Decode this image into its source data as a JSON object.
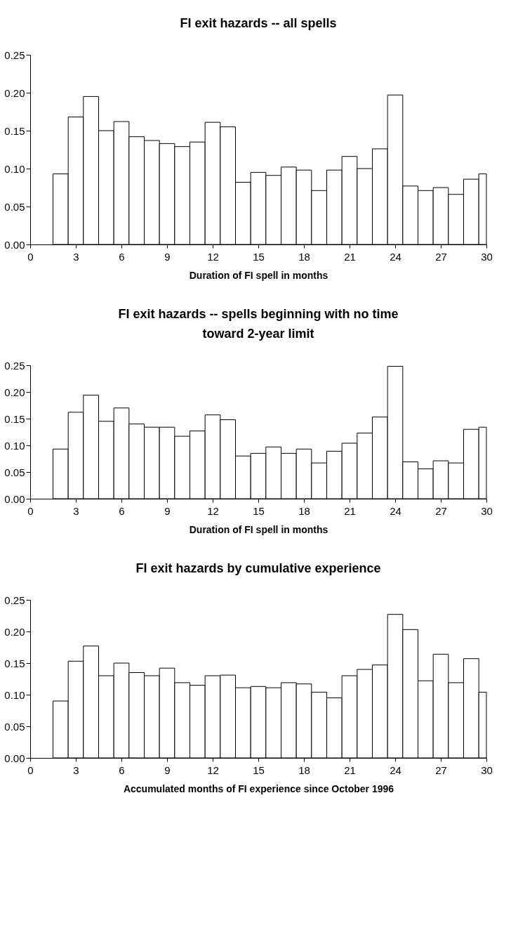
{
  "chart_data": [
    {
      "type": "histogram",
      "title": "FI exit hazards -- all spells",
      "xlabel": "Duration of FI spell in months",
      "bins": [
        1.5,
        2.5,
        3.5,
        4.5,
        5.5,
        6.5,
        7.5,
        8.5,
        9.5,
        10.5,
        11.5,
        12.5,
        13.5,
        14.5,
        15.5,
        16.5,
        17.5,
        18.5,
        19.5,
        20.5,
        21.5,
        22.5,
        23.5,
        24.5,
        25.5,
        26.5,
        27.5,
        28.5,
        29.5,
        30
      ],
      "values": [
        0.093,
        0.168,
        0.195,
        0.15,
        0.162,
        0.142,
        0.137,
        0.133,
        0.129,
        0.135,
        0.161,
        0.155,
        0.082,
        0.095,
        0.091,
        0.102,
        0.098,
        0.071,
        0.098,
        0.116,
        0.1,
        0.126,
        0.197,
        0.077,
        0.071,
        0.075,
        0.066,
        0.086,
        0.093
      ],
      "color": "#ffffff",
      "xlim": [
        0,
        30
      ],
      "xticks": [
        0,
        3,
        6,
        9,
        12,
        15,
        18,
        21,
        24,
        27,
        30
      ],
      "ylim": [
        0,
        0.25
      ],
      "yticks": [
        {
          "value": 0,
          "label": "0.00"
        },
        0.05,
        {
          "value": 0.1,
          "label": "0.10"
        },
        0.15,
        {
          "value": 0.2,
          "label": "0.20"
        },
        0.25
      ],
      "grid": false
    },
    {
      "type": "histogram",
      "title": "FI exit hazards -- spells beginning with no time toward 2-year limit",
      "xlabel": "Duration of FI spell in months",
      "bins": [
        1.5,
        2.5,
        3.5,
        4.5,
        5.5,
        6.5,
        7.5,
        8.5,
        9.5,
        10.5,
        11.5,
        12.5,
        13.5,
        14.5,
        15.5,
        16.5,
        17.5,
        18.5,
        19.5,
        20.5,
        21.5,
        22.5,
        23.5,
        24.5,
        25.5,
        26.5,
        27.5,
        28.5,
        29.5,
        30
      ],
      "values": [
        0.093,
        0.162,
        0.194,
        0.145,
        0.17,
        0.14,
        0.134,
        0.134,
        0.117,
        0.127,
        0.157,
        0.148,
        0.08,
        0.085,
        0.097,
        0.085,
        0.093,
        0.067,
        0.089,
        0.104,
        0.123,
        0.153,
        0.248,
        0.069,
        0.056,
        0.071,
        0.067,
        0.13,
        0.134
      ],
      "color": "#ffffff",
      "xlim": [
        0,
        30
      ],
      "xticks": [
        0,
        3,
        6,
        9,
        12,
        15,
        18,
        21,
        24,
        27,
        30
      ],
      "ylim": [
        0,
        0.25
      ],
      "yticks": [
        {
          "value": 0,
          "label": "0.00"
        },
        0.05,
        {
          "value": 0.1,
          "label": "0.10"
        },
        0.15,
        {
          "value": 0.2,
          "label": "0.20"
        },
        0.25
      ],
      "grid": false
    },
    {
      "type": "histogram",
      "title": "FI exit hazards by cumulative experience",
      "xlabel": "Accumulated months of FI experience since October 1996",
      "bins": [
        1.5,
        2.5,
        3.5,
        4.5,
        5.5,
        6.5,
        7.5,
        8.5,
        9.5,
        10.5,
        11.5,
        12.5,
        13.5,
        14.5,
        15.5,
        16.5,
        17.5,
        18.5,
        19.5,
        20.5,
        21.5,
        22.5,
        23.5,
        24.5,
        25.5,
        26.5,
        27.5,
        28.5,
        29.5,
        30
      ],
      "values": [
        0.09,
        0.153,
        0.177,
        0.13,
        0.15,
        0.135,
        0.13,
        0.142,
        0.119,
        0.115,
        0.13,
        0.131,
        0.111,
        0.113,
        0.111,
        0.119,
        0.117,
        0.104,
        0.095,
        0.13,
        0.14,
        0.147,
        0.227,
        0.203,
        0.122,
        0.164,
        0.119,
        0.157,
        0.104
      ],
      "color": "#ffffff",
      "xlim": [
        0,
        30
      ],
      "xticks": [
        0,
        3,
        6,
        9,
        12,
        15,
        18,
        21,
        24,
        27,
        30
      ],
      "ylim": [
        0,
        0.25
      ],
      "yticks": [
        {
          "value": 0,
          "label": "0.00"
        },
        0.05,
        {
          "value": 0.1,
          "label": "0.10"
        },
        0.15,
        {
          "value": 0.2,
          "label": "0.20"
        },
        0.25
      ],
      "grid": false
    }
  ]
}
